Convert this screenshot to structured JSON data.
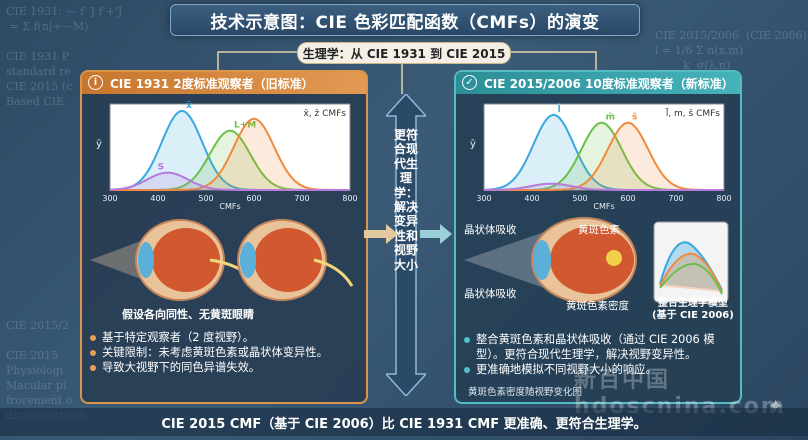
{
  "title": "技术示意图：CIE 色彩匹配函数（CMFs）的演变",
  "subtitle": "生理学：从 CIE 1931 到 CIE 2015",
  "background_formulas": {
    "left": "CIE 1931: — f' J f'+'J\n = Σ f(n|+—M)\n\nCIE 1931 P\nstandard re\nCIE 2015 (c\nBased CIE",
    "left_low": "CIE 2015/2\n\nCIE 2015\nPhysiologi\nMacular pi\nfrorement o\ndimlomntrinci",
    "right": "CIE 2015/2006  (CIE 2006)\nl = 1/6 Σ n(x,m)\n        k  σ(λ,n)\n\n\n= 1.818\n\n+ 0.035"
  },
  "left_panel": {
    "header": "CIE 1931 2度标准观察者（旧标准）",
    "badge_icon": "info-icon",
    "chart_labels": {
      "x": "x̄",
      "lm": "L+M",
      "s": "S",
      "legend": "x̄, z̄ CMFs",
      "ylabel": "ȳ",
      "xlabel": "CMFs"
    },
    "eye_caption": "假设各向同性、无黄斑眼睛",
    "bullets": [
      "基于特定观察者（2 度视野）。",
      "关键限制：未考虑黄斑色素或晶状体变异性。",
      "导致大视野下的同色异谱失效。"
    ]
  },
  "right_panel": {
    "header": "CIE 2015/2006 10度标准观察者（新标准）",
    "badge_icon": "check-icon",
    "chart_labels": {
      "l": "l̄",
      "m": "m̄",
      "s": "s̄",
      "legend": "l̄, m, s̄ CMFs",
      "ylabel": "ȳ",
      "xlabel": "CMFs",
      "side_label": "生理学\n匹配函数"
    },
    "eye_labels": {
      "lens": "晶状体吸收",
      "macular": "黄斑色素",
      "lens2": "晶状体吸收",
      "density": "黄斑色素密度"
    },
    "model_label": "整合生理学模型\n(基于 CIE 2006)",
    "bullets": [
      "整合黄斑色素和晶状体吸收（通过 CIE 2006 模型）。更符合现代生理学，解决视野变异性。",
      "更准确地模拟不同视野大小的响应。"
    ],
    "bottom_note": "黄斑色素密度随视野变化图"
  },
  "center_arrow_text": "更符合现代生理学：解决变异性和视野大小",
  "footer": "CIE 2015 CMF（基于 CIE 2006）比 CIE 1931 CMF 更准确、更符合生理学。",
  "watermark": "新百中国 hdoscnina.com",
  "colors": {
    "left_accent": "#d9954a",
    "right_accent": "#56bcc4",
    "curve_blue": "#3aa7e0",
    "curve_green": "#6cc04a",
    "curve_orange": "#f08a3c",
    "curve_purple": "#b77ad8"
  },
  "chart_data": [
    {
      "type": "line",
      "title": "CIE 1931",
      "xlim": [
        300,
        800
      ],
      "x_ticks": [
        300,
        400,
        500,
        600,
        700,
        800
      ],
      "series": [
        {
          "name": "x̄",
          "peak_x": 450,
          "peak_y": 1.0,
          "color": "#3aa7e0"
        },
        {
          "name": "L+M",
          "peak_x": 550,
          "peak_y": 0.75,
          "color": "#6cc04a"
        },
        {
          "name": "",
          "peak_x": 600,
          "peak_y": 0.9,
          "color": "#f08a3c"
        },
        {
          "name": "S",
          "peak_x": 420,
          "peak_y": 0.22,
          "color": "#b77ad8"
        }
      ]
    },
    {
      "type": "line",
      "title": "CIE 2015/2006",
      "xlim": [
        300,
        800
      ],
      "x_ticks": [
        300,
        400,
        500,
        600,
        700,
        800
      ],
      "series": [
        {
          "name": "l̄",
          "peak_x": 445,
          "peak_y": 0.95,
          "color": "#3aa7e0"
        },
        {
          "name": "m̄",
          "peak_x": 545,
          "peak_y": 0.85,
          "color": "#6cc04a"
        },
        {
          "name": "s̄",
          "peak_x": 600,
          "peak_y": 0.85,
          "color": "#f08a3c"
        },
        {
          "name": "",
          "peak_x": 440,
          "peak_y": 0.08,
          "color": "#b77ad8"
        }
      ]
    }
  ]
}
